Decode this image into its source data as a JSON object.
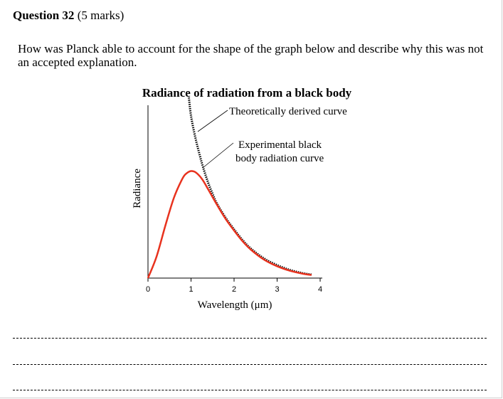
{
  "question": {
    "number_label": "Question 32",
    "marks_label": "(5 marks)",
    "text": "How was Planck able to account for the shape of the graph below and describe why this was not an accepted explanation."
  },
  "chart_data": {
    "type": "line",
    "title": "Radiance of radiation from a black body",
    "xlabel": "Wavelength (μm)",
    "ylabel": "Radiance",
    "xlim": [
      0,
      4
    ],
    "x_ticks": [
      "0",
      "1",
      "2",
      "3",
      "4"
    ],
    "grid": false,
    "series": [
      {
        "name": "Experimental black body radiation curve",
        "color": "#e8321e",
        "style": "solid",
        "x": [
          0.0,
          0.2,
          0.4,
          0.6,
          0.8,
          0.9,
          1.0,
          1.1,
          1.25,
          1.4,
          1.6,
          1.8,
          2.0,
          2.2,
          2.4,
          2.7,
          3.0,
          3.3,
          3.6,
          3.8
        ],
        "y": [
          0.0,
          0.2,
          0.48,
          0.74,
          0.92,
          0.97,
          0.99,
          0.98,
          0.92,
          0.82,
          0.68,
          0.55,
          0.44,
          0.34,
          0.26,
          0.17,
          0.11,
          0.068,
          0.04,
          0.028
        ]
      },
      {
        "name": "Theoretically derived curve",
        "color": "#000000",
        "style": "dotted",
        "x": [
          0.95,
          1.0,
          1.1,
          1.2,
          1.3,
          1.4,
          1.5,
          1.6,
          1.8,
          2.0,
          2.2,
          2.4,
          2.7,
          3.0,
          3.3,
          3.6,
          3.8
        ],
        "y": [
          1.67,
          1.5,
          1.3,
          1.14,
          1.0,
          0.88,
          0.78,
          0.69,
          0.56,
          0.45,
          0.35,
          0.27,
          0.18,
          0.12,
          0.075,
          0.045,
          0.032
        ]
      }
    ],
    "annotations": {
      "theoretical": "Theoretically derived curve",
      "experimental_line1": "Experimental black",
      "experimental_line2": "body radiation curve"
    }
  }
}
